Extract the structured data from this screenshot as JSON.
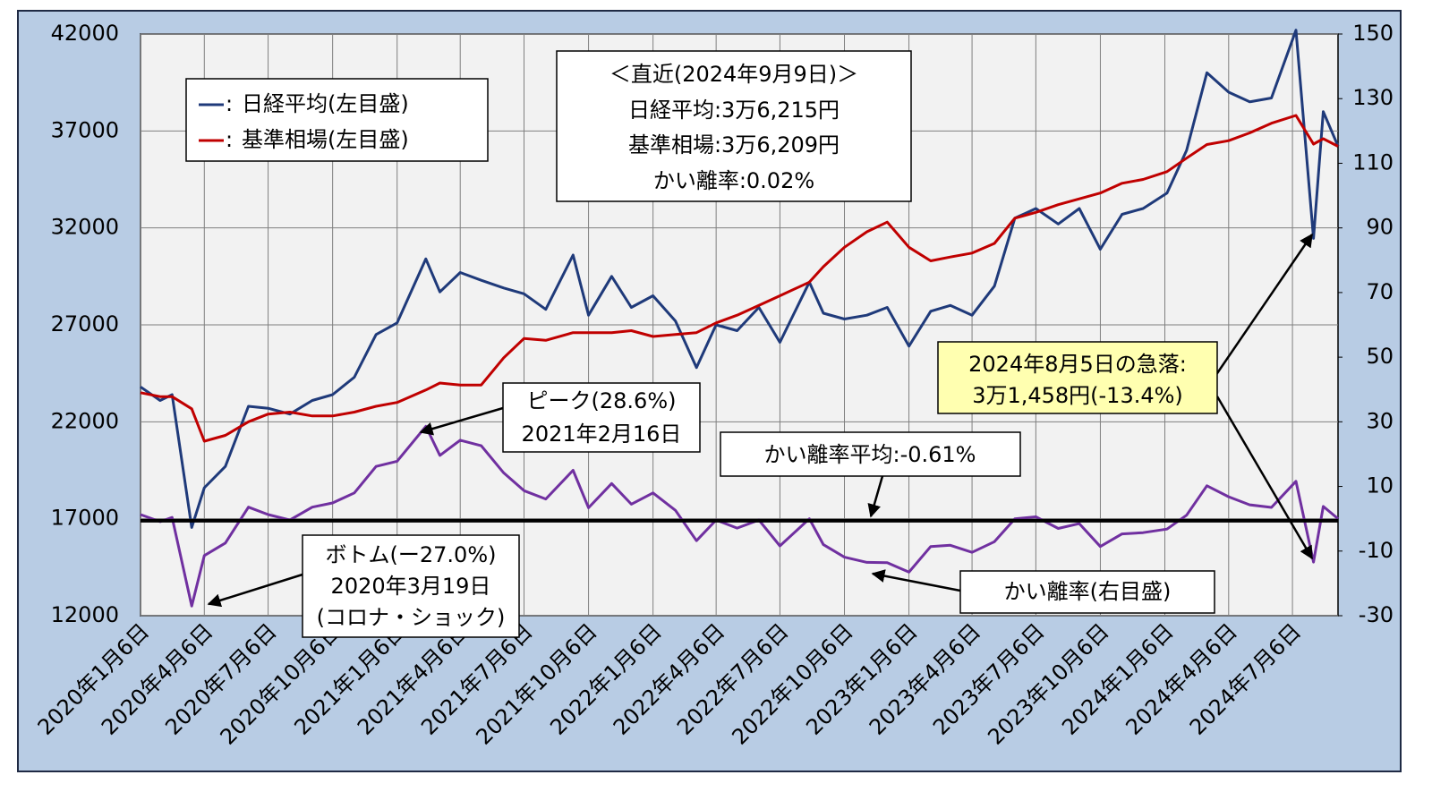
{
  "chart_data": {
    "type": "line",
    "x": [
      "2020-01-06",
      "2020-02-03",
      "2020-02-20",
      "2020-03-19",
      "2020-04-06",
      "2020-05-06",
      "2020-06-08",
      "2020-07-06",
      "2020-08-06",
      "2020-09-07",
      "2020-10-06",
      "2020-11-06",
      "2020-12-07",
      "2021-01-06",
      "2021-02-16",
      "2021-03-08",
      "2021-04-06",
      "2021-05-06",
      "2021-06-07",
      "2021-07-06",
      "2021-08-06",
      "2021-09-14",
      "2021-10-06",
      "2021-11-08",
      "2021-12-06",
      "2022-01-06",
      "2022-02-07",
      "2022-03-09",
      "2022-04-06",
      "2022-05-06",
      "2022-06-06",
      "2022-07-06",
      "2022-08-17",
      "2022-09-06",
      "2022-10-06",
      "2022-11-07",
      "2022-12-06",
      "2023-01-06",
      "2023-02-06",
      "2023-03-06",
      "2023-04-06",
      "2023-05-08",
      "2023-06-06",
      "2023-07-06",
      "2023-08-07",
      "2023-09-06",
      "2023-10-06",
      "2023-11-06",
      "2023-12-06",
      "2024-01-09",
      "2024-02-06",
      "2024-03-06",
      "2024-04-06",
      "2024-05-06",
      "2024-06-06",
      "2024-07-11",
      "2024-08-05",
      "2024-08-19",
      "2024-09-09"
    ],
    "series": [
      {
        "name": "日経平均(左目盛)",
        "color": "#1f3a7a",
        "values": [
          23800,
          23100,
          23400,
          16550,
          18600,
          19700,
          22800,
          22700,
          22400,
          23100,
          23400,
          24300,
          26500,
          27100,
          30400,
          28700,
          29700,
          29300,
          28900,
          28600,
          27800,
          30600,
          27500,
          29500,
          27900,
          28500,
          27200,
          24800,
          27000,
          26700,
          27900,
          26100,
          29200,
          27600,
          27300,
          27500,
          27900,
          25900,
          27700,
          28000,
          27500,
          29000,
          32500,
          33000,
          32200,
          33000,
          30900,
          32700,
          33000,
          33800,
          36000,
          40000,
          39000,
          38500,
          38700,
          42200,
          31458,
          38000,
          36215
        ]
      },
      {
        "name": "基準相場(左目盛)",
        "color": "#c00000",
        "values": [
          23500,
          23300,
          23300,
          22670,
          21000,
          21300,
          22000,
          22400,
          22500,
          22300,
          22300,
          22500,
          22800,
          23000,
          23640,
          24000,
          23900,
          23900,
          25300,
          26300,
          26200,
          26600,
          26600,
          26600,
          26700,
          26400,
          26500,
          26600,
          27100,
          27500,
          28000,
          28500,
          29200,
          30000,
          31000,
          31800,
          32300,
          31000,
          30300,
          30500,
          30700,
          31200,
          32500,
          32800,
          33200,
          33500,
          33800,
          34300,
          34500,
          34900,
          35600,
          36300,
          36500,
          36900,
          37400,
          37800,
          36325,
          36600,
          36209
        ]
      },
      {
        "name": "かい離率(右目盛)",
        "color": "#7030a0",
        "axis": "y2",
        "values": [
          1.3,
          -0.9,
          0.4,
          -27.0,
          -11.4,
          -7.5,
          3.6,
          1.3,
          -0.4,
          3.6,
          4.9,
          8.0,
          16.2,
          17.8,
          28.6,
          19.6,
          24.3,
          22.6,
          14.2,
          8.7,
          6.1,
          15.0,
          3.4,
          10.9,
          4.5,
          8.0,
          2.6,
          -6.8,
          -0.4,
          -2.9,
          -0.4,
          -8.4,
          0.0,
          -8.0,
          -11.9,
          -13.5,
          -13.6,
          -16.5,
          -8.6,
          -8.2,
          -10.4,
          -7.1,
          0.0,
          0.6,
          -3.0,
          -1.5,
          -8.6,
          -4.7,
          -4.3,
          -3.2,
          1.1,
          10.2,
          6.8,
          4.3,
          3.5,
          11.6,
          -13.4,
          3.8,
          0.02
        ]
      }
    ],
    "legend_separator": ":",
    "xlim": [
      "2020-01-06",
      "2024-09-09"
    ],
    "xticks": [
      {
        "value": "2020-01-06",
        "label": "2020年1月6日"
      },
      {
        "value": "2020-04-06",
        "label": "2020年4月6日"
      },
      {
        "value": "2020-07-06",
        "label": "2020年7月6日"
      },
      {
        "value": "2020-10-06",
        "label": "2020年10月6日"
      },
      {
        "value": "2021-01-06",
        "label": "2021年1月6日"
      },
      {
        "value": "2021-04-06",
        "label": "2021年4月6日"
      },
      {
        "value": "2021-07-06",
        "label": "2021年7月6日"
      },
      {
        "value": "2021-10-06",
        "label": "2021年10月6日"
      },
      {
        "value": "2022-01-06",
        "label": "2022年1月6日"
      },
      {
        "value": "2022-04-06",
        "label": "2022年4月6日"
      },
      {
        "value": "2022-07-06",
        "label": "2022年7月6日"
      },
      {
        "value": "2022-10-06",
        "label": "2022年10月6日"
      },
      {
        "value": "2023-01-06",
        "label": "2023年1月6日"
      },
      {
        "value": "2023-04-06",
        "label": "2023年4月6日"
      },
      {
        "value": "2023-07-06",
        "label": "2023年7月6日"
      },
      {
        "value": "2023-10-06",
        "label": "2023年10月6日"
      },
      {
        "value": "2024-01-06",
        "label": "2024年1月6日"
      },
      {
        "value": "2024-04-06",
        "label": "2024年4月6日"
      },
      {
        "value": "2024-07-06",
        "label": "2024年7月6日"
      }
    ],
    "ylim": [
      12000,
      42000
    ],
    "yticks": [
      12000,
      17000,
      22000,
      27000,
      32000,
      37000,
      42000
    ],
    "y2lim": [
      -30,
      150
    ],
    "y2ticks": [
      -30,
      -10,
      10,
      30,
      50,
      70,
      90,
      110,
      130,
      150
    ],
    "grid": true,
    "average": {
      "value": -0.61,
      "label": "かい離率平均:-0.61%"
    },
    "annotations": {
      "recent": [
        "＜直近(2024年9月9日)＞",
        "日経平均:3万6,215円",
        "基準相場:3万6,209円",
        "かい離率:0.02%"
      ],
      "peak": [
        "ピーク(28.6%)",
        "2021年2月16日"
      ],
      "bottom": [
        "ボトム(ー27.0%)",
        "2020年3月19日",
        "(コロナ・ショック)"
      ],
      "crash": [
        "2024年8月5日の急落:",
        "3万1,458円(-13.4%)"
      ]
    }
  }
}
